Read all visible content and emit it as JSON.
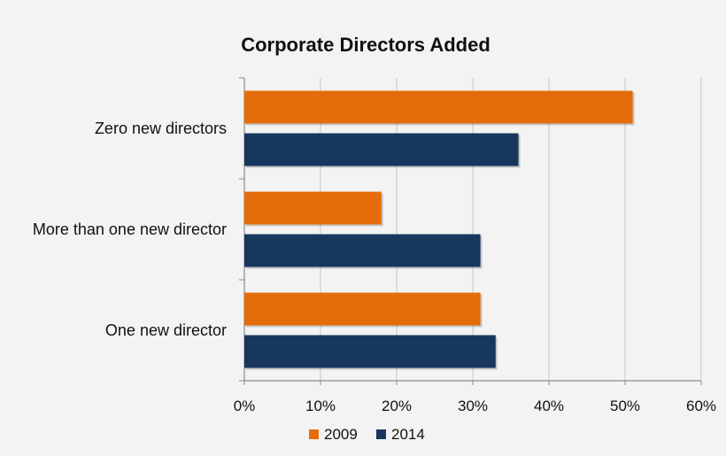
{
  "chart_data": {
    "type": "bar",
    "orientation": "horizontal",
    "title": "Corporate Directors Added",
    "xlabel": "",
    "ylabel": "",
    "categories": [
      "Zero new directors",
      "More than one new director",
      "One new director"
    ],
    "series": [
      {
        "name": "2009",
        "color": "#e46c0a",
        "values": [
          51,
          18,
          31
        ]
      },
      {
        "name": "2014",
        "color": "#17375e",
        "values": [
          36,
          31,
          33
        ]
      }
    ],
    "xlim": [
      0,
      60
    ],
    "x_ticks": [
      "0%",
      "10%",
      "20%",
      "30%",
      "40%",
      "50%",
      "60%"
    ],
    "x_tick_values": [
      0,
      10,
      20,
      30,
      40,
      50,
      60
    ],
    "value_unit": "%",
    "grid": true,
    "legend_position": "bottom"
  }
}
